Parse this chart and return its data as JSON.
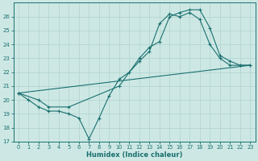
{
  "xlabel": "Humidex (Indice chaleur)",
  "xlim": [
    -0.5,
    23.5
  ],
  "ylim": [
    17,
    27
  ],
  "yticks": [
    17,
    18,
    19,
    20,
    21,
    22,
    23,
    24,
    25,
    26
  ],
  "xticks": [
    0,
    1,
    2,
    3,
    4,
    5,
    6,
    7,
    8,
    9,
    10,
    11,
    12,
    13,
    14,
    15,
    16,
    17,
    18,
    19,
    20,
    21,
    22,
    23
  ],
  "bg_color": "#cde8e4",
  "grid_color": "#b8d8d4",
  "line_color": "#1a7070",
  "curve1_x": [
    0,
    1,
    2,
    3,
    4,
    5,
    6,
    7,
    8,
    9,
    10,
    11,
    12,
    13,
    14,
    15,
    16,
    17,
    18,
    19,
    20,
    21,
    22,
    23
  ],
  "curve1_y": [
    20.5,
    20.0,
    19.5,
    19.2,
    19.2,
    19.0,
    18.7,
    17.2,
    18.7,
    20.3,
    21.5,
    22.0,
    22.8,
    23.5,
    25.5,
    26.2,
    26.0,
    26.3,
    25.8,
    24.0,
    23.0,
    22.5,
    22.5,
    22.5
  ],
  "curve2_x": [
    0,
    2,
    3,
    5,
    10,
    12,
    13,
    14,
    15,
    16,
    17,
    18,
    19,
    20,
    21,
    22,
    23
  ],
  "curve2_y": [
    20.5,
    20.0,
    19.5,
    19.5,
    21.0,
    23.0,
    23.8,
    24.2,
    26.0,
    26.3,
    26.5,
    26.5,
    25.2,
    23.2,
    22.8,
    22.5,
    22.5
  ],
  "curve3_x": [
    0,
    23
  ],
  "curve3_y": [
    20.5,
    22.5
  ]
}
